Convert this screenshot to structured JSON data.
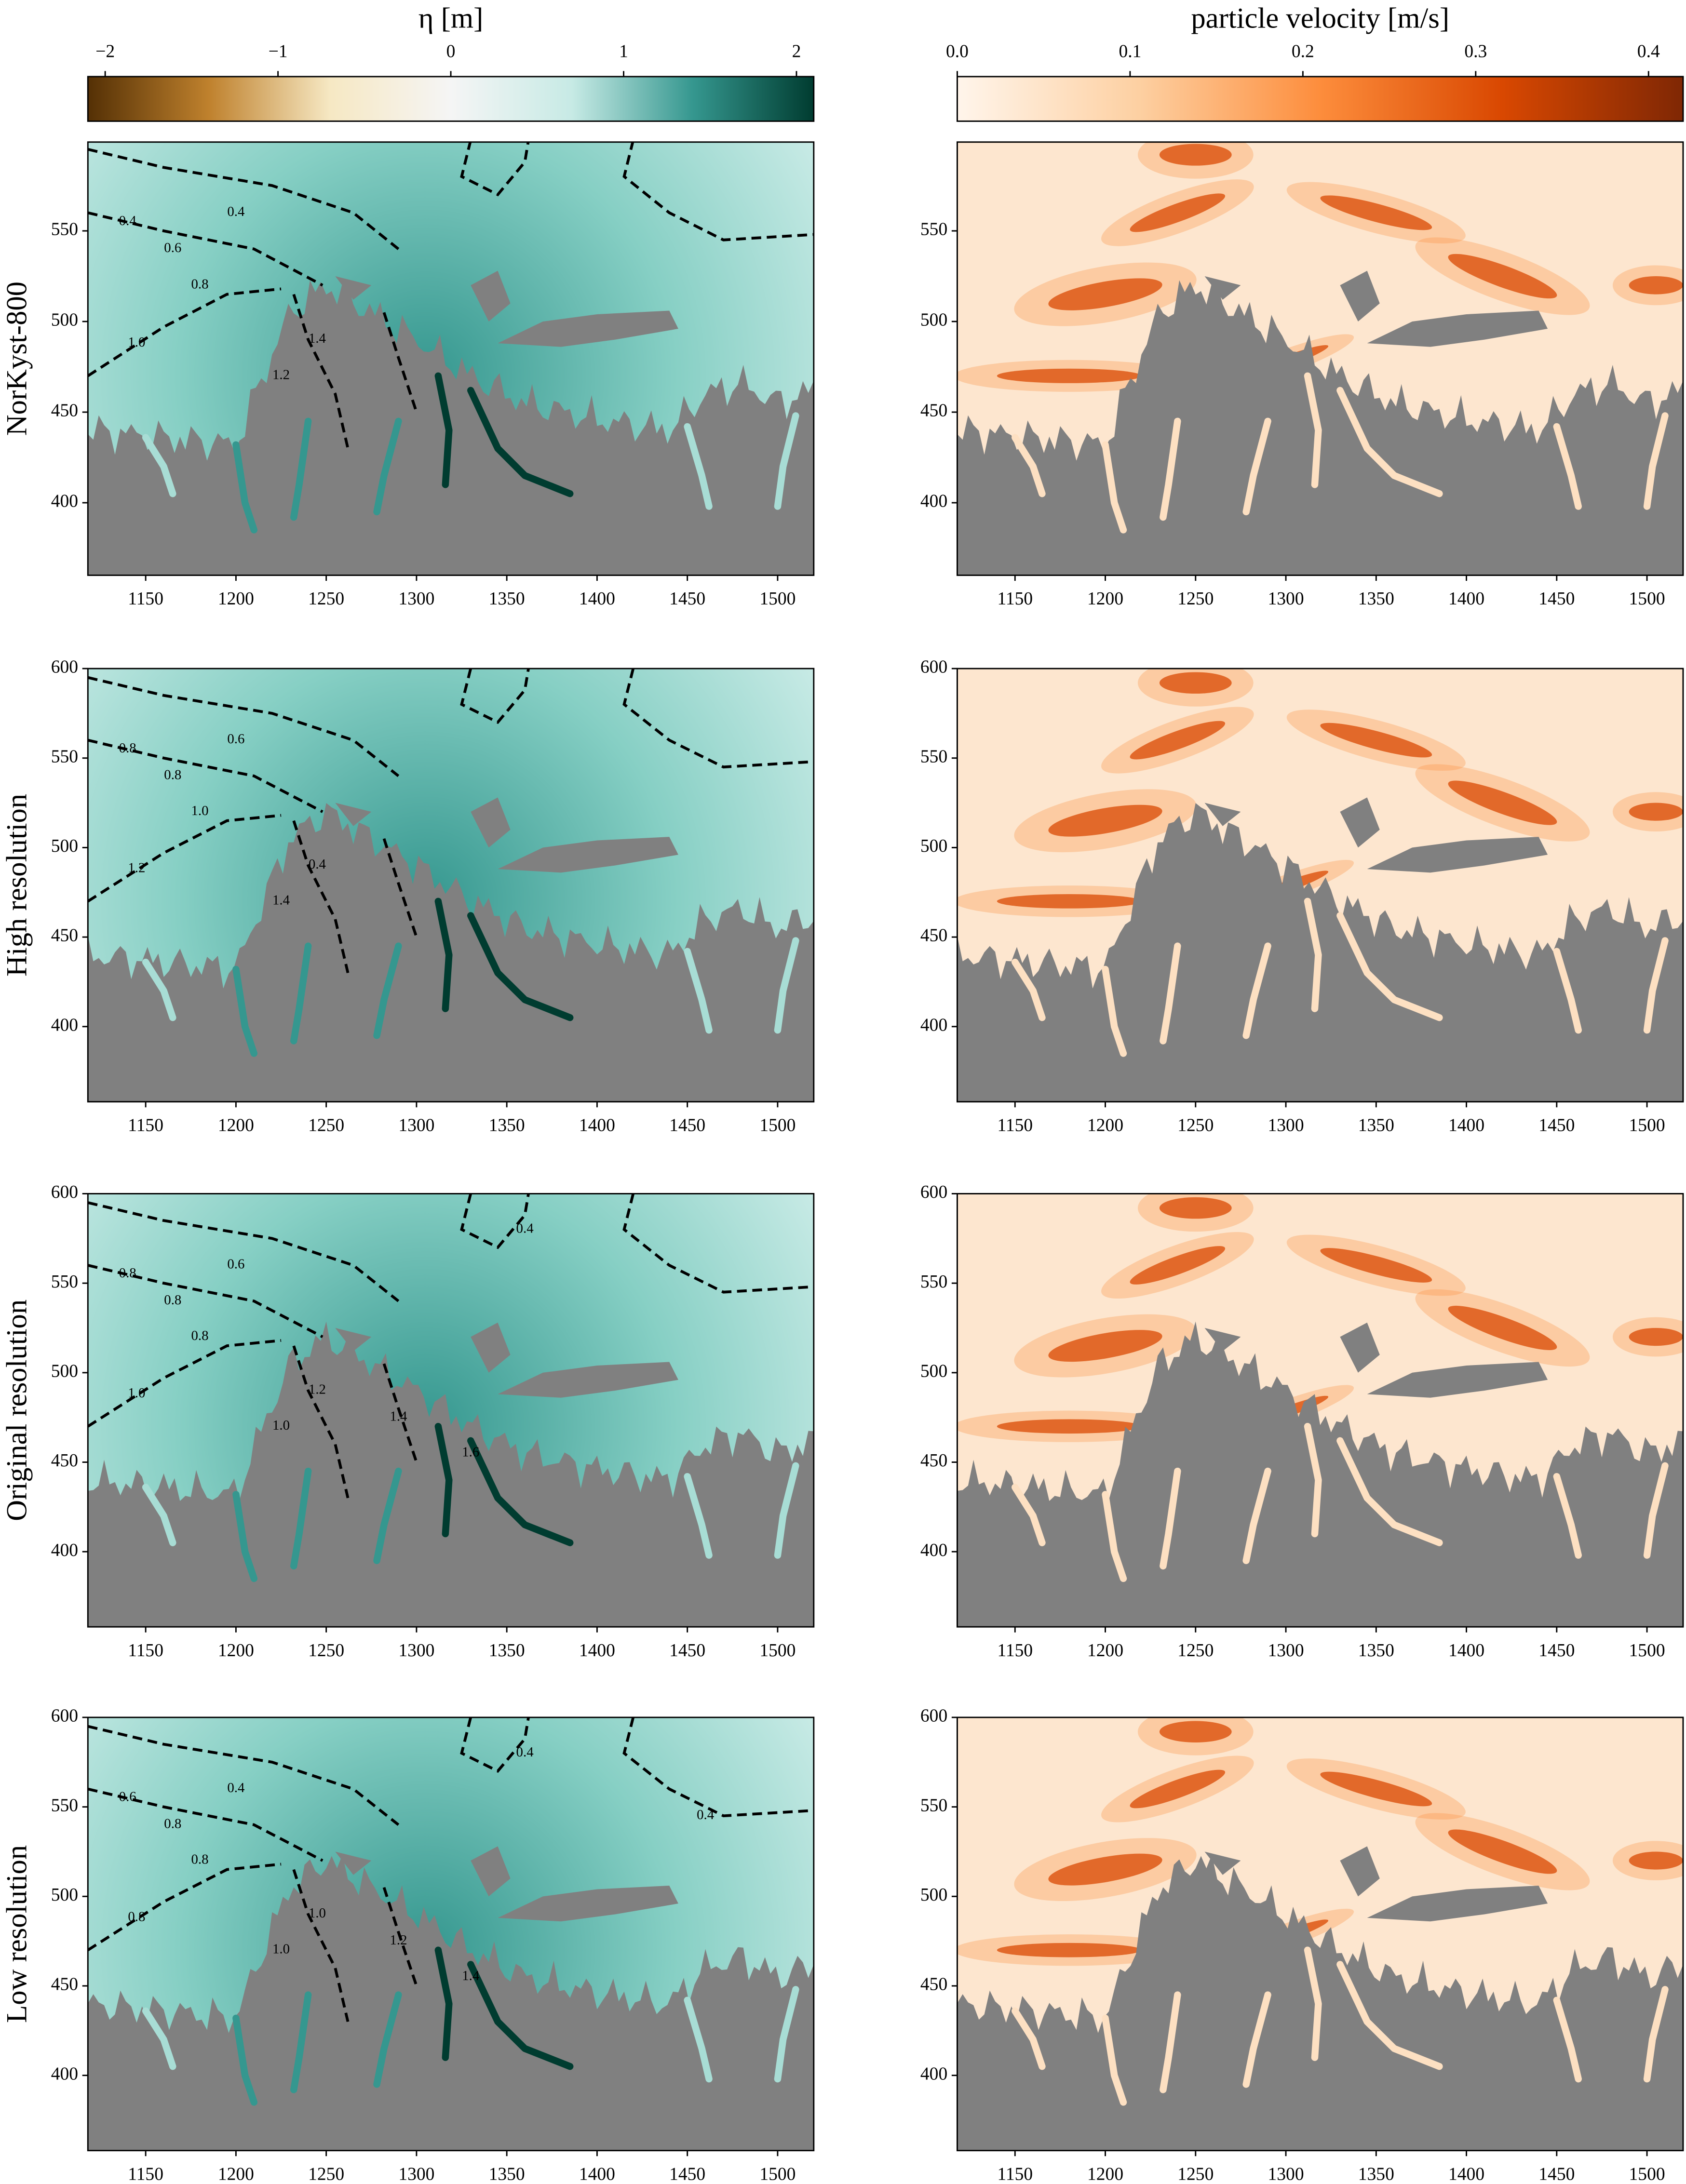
{
  "chart_data": [
    {
      "type": "colorbar",
      "label": "η [m]",
      "colors": [
        "#543005",
        "#bf812d",
        "#f6e8c3",
        "#f5f5f5",
        "#c7eae5",
        "#35978f",
        "#003c30"
      ],
      "lim": [
        -2.1,
        2.1
      ],
      "ticks": [
        {
          "value": -2,
          "label": "−2"
        },
        {
          "value": -1,
          "label": "−1"
        },
        0,
        1,
        2
      ]
    },
    {
      "type": "colorbar",
      "label": "particle velocity [m/s]",
      "colors": [
        "#fff5eb",
        "#fdd0a2",
        "#fd8d3c",
        "#d94801",
        "#7f2704"
      ],
      "lim": [
        0,
        0.42
      ],
      "ticks": [
        {
          "value": 0,
          "label": "0.0"
        },
        0.1,
        0.2,
        0.3,
        0.4
      ]
    },
    {
      "type": "heatmap",
      "colorbar": 0,
      "ylabel": "NorKyst-800",
      "xlim": [
        1118,
        1520
      ],
      "ylim": [
        360,
        599
      ],
      "xticks": [
        1150,
        1200,
        1250,
        1300,
        1350,
        1400,
        1450,
        1500
      ],
      "yticks": [
        400,
        450,
        500,
        550
      ],
      "contour_labels": [
        "0.4",
        "0.4",
        "0.6",
        "0.8",
        "1.0",
        "1.2",
        "1.4"
      ]
    },
    {
      "type": "heatmap",
      "colorbar": 1,
      "xlim": [
        1118,
        1520
      ],
      "ylim": [
        360,
        599
      ],
      "xticks": [
        1150,
        1200,
        1250,
        1300,
        1350,
        1400,
        1450,
        1500
      ],
      "yticks": [
        400,
        450,
        500,
        550
      ]
    },
    {
      "type": "heatmap",
      "colorbar": 0,
      "ylabel": "High resolution",
      "xlim": [
        1118,
        1520
      ],
      "ylim": [
        358,
        600
      ],
      "xticks": [
        1150,
        1200,
        1250,
        1300,
        1350,
        1400,
        1450,
        1500
      ],
      "yticks": [
        400,
        450,
        500,
        550,
        600
      ],
      "contour_labels": [
        "0.6",
        "0.8",
        "0.8",
        "1.0",
        "1.2",
        "1.4",
        "0.4"
      ]
    },
    {
      "type": "heatmap",
      "colorbar": 1,
      "xlim": [
        1118,
        1520
      ],
      "ylim": [
        358,
        600
      ],
      "xticks": [
        1150,
        1200,
        1250,
        1300,
        1350,
        1400,
        1450,
        1500
      ],
      "yticks": [
        400,
        450,
        500,
        550,
        600
      ]
    },
    {
      "type": "heatmap",
      "colorbar": 0,
      "ylabel": "Original resolution",
      "xlim": [
        1118,
        1520
      ],
      "ylim": [
        358,
        600
      ],
      "xticks": [
        1150,
        1200,
        1250,
        1300,
        1350,
        1400,
        1450,
        1500
      ],
      "yticks": [
        400,
        450,
        500,
        550,
        600
      ],
      "contour_labels": [
        "0.6",
        "0.8",
        "0.8",
        "0.8",
        "1.0",
        "1.0",
        "1.2",
        "1.4",
        "1.6",
        "0.4"
      ]
    },
    {
      "type": "heatmap",
      "colorbar": 1,
      "xlim": [
        1118,
        1520
      ],
      "ylim": [
        358,
        600
      ],
      "xticks": [
        1150,
        1200,
        1250,
        1300,
        1350,
        1400,
        1450,
        1500
      ],
      "yticks": [
        400,
        450,
        500,
        550,
        600
      ]
    },
    {
      "type": "heatmap",
      "colorbar": 0,
      "ylabel": "Low resolution",
      "xlim": [
        1118,
        1520
      ],
      "ylim": [
        358,
        600
      ],
      "xticks": [
        1150,
        1200,
        1250,
        1300,
        1350,
        1400,
        1450,
        1500
      ],
      "yticks": [
        400,
        450,
        500,
        550,
        600
      ],
      "contour_labels": [
        "0.4",
        "0.6",
        "0.8",
        "0.8",
        "0.8",
        "1.0",
        "1.0",
        "1.2",
        "1.4",
        "0.4",
        "0.4"
      ]
    },
    {
      "type": "heatmap",
      "colorbar": 1,
      "xlim": [
        1118,
        1520
      ],
      "ylim": [
        358,
        600
      ],
      "xticks": [
        1150,
        1200,
        1250,
        1300,
        1350,
        1400,
        1450,
        1500
      ],
      "yticks": [
        400,
        450,
        500,
        550,
        600
      ]
    }
  ]
}
